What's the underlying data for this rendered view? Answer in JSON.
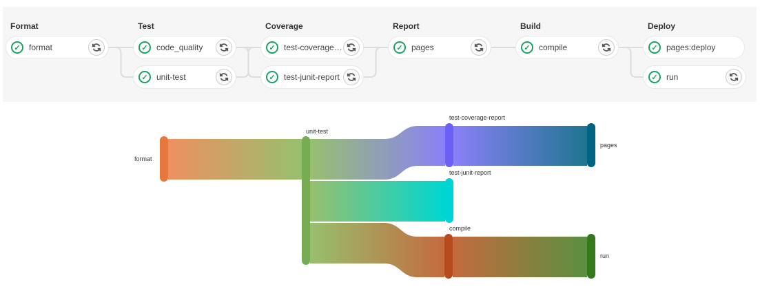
{
  "pipeline": {
    "stages": [
      {
        "name": "Format",
        "jobs": [
          {
            "name": "format",
            "status": "success",
            "retry": true
          }
        ]
      },
      {
        "name": "Test",
        "jobs": [
          {
            "name": "code_quality",
            "status": "success",
            "retry": true
          },
          {
            "name": "unit-test",
            "status": "success",
            "retry": true
          }
        ]
      },
      {
        "name": "Coverage",
        "jobs": [
          {
            "name": "test-coverage-report",
            "status": "success",
            "retry": true
          },
          {
            "name": "test-junit-report",
            "status": "success",
            "retry": true
          }
        ]
      },
      {
        "name": "Report",
        "jobs": [
          {
            "name": "pages",
            "status": "success",
            "retry": true
          }
        ]
      },
      {
        "name": "Build",
        "jobs": [
          {
            "name": "compile",
            "status": "success",
            "retry": true
          }
        ]
      },
      {
        "name": "Deploy",
        "jobs": [
          {
            "name": "pages:deploy",
            "status": "success",
            "retry": false
          },
          {
            "name": "run",
            "status": "success",
            "retry": true
          }
        ]
      }
    ],
    "status_icon": "check-circle-icon",
    "retry_icon": "retry-icon",
    "success_color": "#1aa260"
  },
  "sankey": {
    "nodes": [
      {
        "id": "format",
        "color": "#e8773a"
      },
      {
        "id": "unit-test",
        "color": "#77ad52"
      },
      {
        "id": "test-coverage-report",
        "color": "#6c5ff5"
      },
      {
        "id": "test-junit-report",
        "color": "#00d4d4"
      },
      {
        "id": "compile",
        "color": "#b84b1e"
      },
      {
        "id": "pages",
        "color": "#006381"
      },
      {
        "id": "run",
        "color": "#357a1a"
      }
    ],
    "links": [
      {
        "source": "format",
        "target": "unit-test",
        "value": 1,
        "from_color": "#ee9060",
        "to_color": "#97c06e"
      },
      {
        "source": "unit-test",
        "target": "test-coverage-report",
        "value": 1,
        "from_color": "#97c06e",
        "to_color": "#8a80f8"
      },
      {
        "source": "unit-test",
        "target": "test-junit-report",
        "value": 1,
        "from_color": "#97c06e",
        "to_color": "#00d6d0"
      },
      {
        "source": "unit-test",
        "target": "compile",
        "value": 1,
        "from_color": "#97c06e",
        "to_color": "#c46a3e"
      },
      {
        "source": "test-coverage-report",
        "target": "pages",
        "value": 1,
        "from_color": "#8a80f8",
        "to_color": "#1f7590"
      },
      {
        "source": "compile",
        "target": "run",
        "value": 1,
        "from_color": "#c46a3e",
        "to_color": "#5a9040"
      }
    ]
  }
}
